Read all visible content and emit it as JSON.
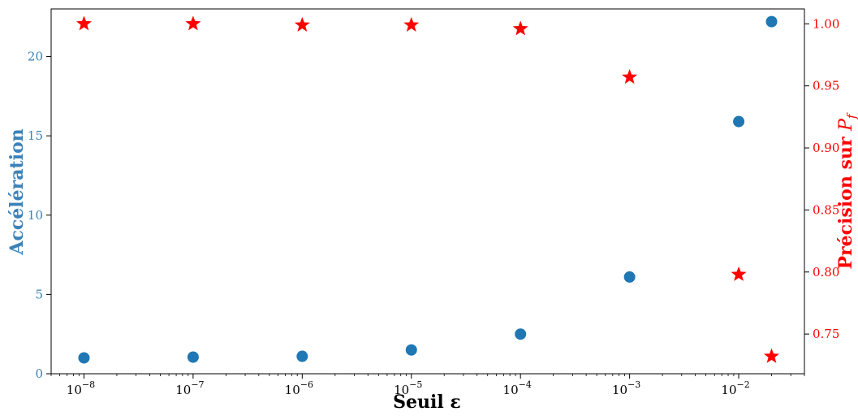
{
  "chart_data": {
    "type": "scatter",
    "x_scale": "log",
    "xlabel": "Seuil ε",
    "x_tick_values": [
      1e-08,
      1e-07,
      1e-06,
      1e-05,
      0.0001,
      0.001,
      0.01
    ],
    "x_tick_labels": [
      "10^-8",
      "10^-7",
      "10^-6",
      "10^-5",
      "10^-4",
      "10^-3",
      "10^-2"
    ],
    "x_tick_bases": [
      "10",
      "10",
      "10",
      "10",
      "10",
      "10",
      "10"
    ],
    "x_tick_exponents": [
      "−8",
      "−7",
      "−6",
      "−5",
      "−4",
      "−3",
      "−2"
    ],
    "xlim": [
      5e-09,
      0.04
    ],
    "left_axis": {
      "label": "Accélération",
      "ylim": [
        0,
        23
      ],
      "ticks": [
        0,
        5,
        10,
        15,
        20
      ],
      "tick_labels": [
        "0",
        "5",
        "10",
        "15",
        "20"
      ],
      "color": "#3b82b9"
    },
    "right_axis": {
      "label_text": "Précision sur ",
      "label_symbol": "P",
      "label_subscript": "f",
      "ylim": [
        0.718,
        1.012
      ],
      "ticks": [
        0.75,
        0.8,
        0.85,
        0.9,
        0.95,
        1.0
      ],
      "tick_labels": [
        "0.75",
        "0.80",
        "0.85",
        "0.90",
        "0.95",
        "1.00"
      ],
      "color": "#ff0000"
    },
    "series": [
      {
        "axis": "left",
        "marker": "circle",
        "color": "#1f77b4",
        "x": [
          1e-08,
          1e-07,
          1e-06,
          1e-05,
          0.0001,
          0.001,
          0.01,
          0.02
        ],
        "y": [
          1.0,
          1.05,
          1.1,
          1.5,
          2.5,
          6.1,
          15.9,
          22.2
        ]
      },
      {
        "axis": "right",
        "marker": "star",
        "color": "#ff0000",
        "x": [
          1e-08,
          1e-07,
          1e-06,
          1e-05,
          0.0001,
          0.001,
          0.01,
          0.02
        ],
        "y": [
          1.0,
          1.0,
          0.999,
          0.999,
          0.996,
          0.957,
          0.798,
          0.732
        ]
      }
    ]
  }
}
